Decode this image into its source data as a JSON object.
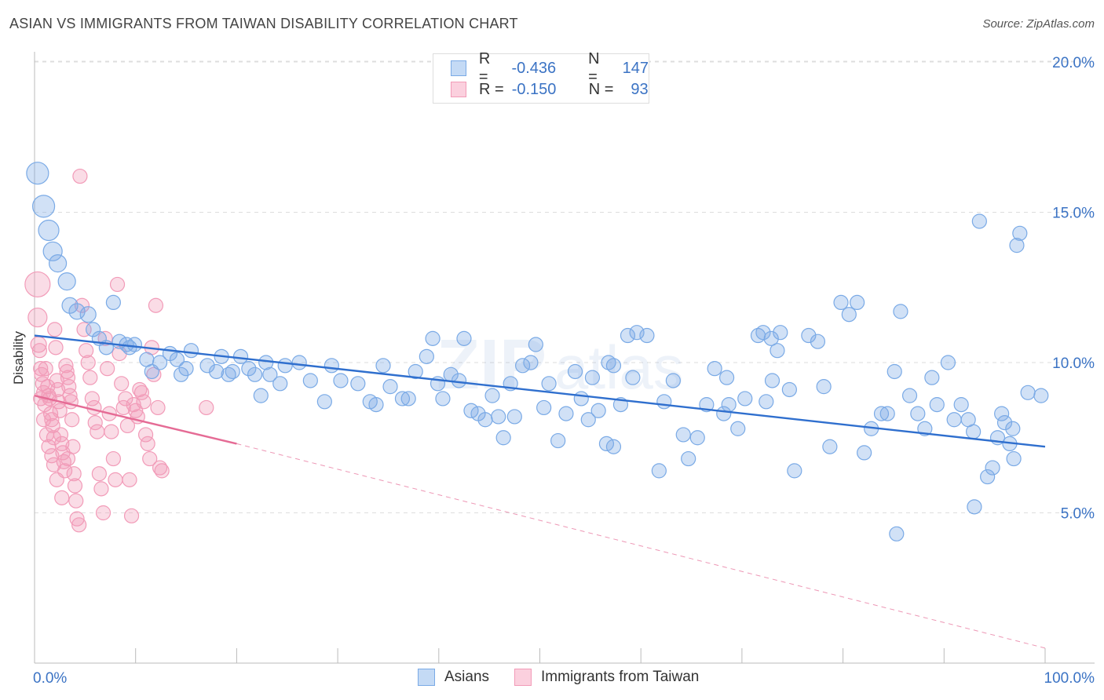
{
  "header": {
    "title": "ASIAN VS IMMIGRANTS FROM TAIWAN DISABILITY CORRELATION CHART",
    "source": "Source: ZipAtlas.com"
  },
  "legend": {
    "asians": {
      "r_label": "R =",
      "r_value": "-0.436",
      "n_label": "N =",
      "n_value": "147"
    },
    "taiwan": {
      "r_label": "R =",
      "r_value": "-0.150",
      "n_label": "N =",
      "n_value": "93"
    }
  },
  "watermark": {
    "zip": "ZIP",
    "atlas": "atlas"
  },
  "chart_data": {
    "type": "scatter",
    "title": "ASIAN VS IMMIGRANTS FROM TAIWAN DISABILITY CORRELATION CHART",
    "xlabel": "",
    "ylabel": "Disability",
    "xlim": [
      0,
      100
    ],
    "ylim": [
      0,
      21
    ],
    "x_tick_labels": [
      "0.0%",
      "100.0%"
    ],
    "y_ticks": [
      5,
      10,
      15,
      20
    ],
    "y_tick_labels": [
      "5.0%",
      "10.0%",
      "15.0%",
      "20.0%"
    ],
    "grid": "horizontal dashed",
    "legend_position": "bottom-center",
    "colors": {
      "asians": "#7aaae6",
      "asians_line": "#2f6fce",
      "taiwan": "#f29bb8",
      "taiwan_line": "#e56b95",
      "tick_text": "#3b73c4"
    },
    "series": [
      {
        "name": "Asians",
        "trend": {
          "x": [
            0,
            100
          ],
          "y": [
            10.9,
            7.2
          ]
        },
        "points": [
          [
            0.3,
            16.3,
            14
          ],
          [
            0.9,
            15.2,
            14
          ],
          [
            1.4,
            14.4,
            13
          ],
          [
            1.8,
            13.7,
            12
          ],
          [
            2.3,
            13.3,
            11
          ],
          [
            3.2,
            12.7,
            11
          ],
          [
            3.5,
            11.9,
            10
          ],
          [
            4.2,
            11.7,
            10
          ],
          [
            5.3,
            11.6,
            10
          ],
          [
            7.8,
            12.0,
            9
          ],
          [
            5.8,
            11.1,
            9
          ],
          [
            6.4,
            10.8,
            9
          ],
          [
            7.1,
            10.5,
            9
          ],
          [
            9.1,
            10.6,
            9
          ],
          [
            9.9,
            10.6,
            9
          ],
          [
            8.4,
            10.7,
            9
          ],
          [
            9.4,
            10.5,
            9
          ],
          [
            11.6,
            9.7,
            9
          ],
          [
            11.1,
            10.1,
            9
          ],
          [
            12.4,
            10.0,
            9
          ],
          [
            13.4,
            10.3,
            9
          ],
          [
            14.1,
            10.1,
            9
          ],
          [
            14.5,
            9.6,
            9
          ],
          [
            15.0,
            9.8,
            9
          ],
          [
            15.5,
            10.4,
            9
          ],
          [
            17.1,
            9.9,
            9
          ],
          [
            18.0,
            9.7,
            9
          ],
          [
            18.5,
            10.2,
            9
          ],
          [
            19.2,
            9.6,
            9
          ],
          [
            19.6,
            9.7,
            9
          ],
          [
            20.4,
            10.2,
            9
          ],
          [
            21.2,
            9.8,
            9
          ],
          [
            21.8,
            9.6,
            9
          ],
          [
            22.4,
            8.9,
            9
          ],
          [
            23.3,
            9.6,
            9
          ],
          [
            24.3,
            9.3,
            9
          ],
          [
            24.8,
            9.9,
            9
          ],
          [
            22.9,
            10.0,
            9
          ],
          [
            26.2,
            10.0,
            9
          ],
          [
            27.3,
            9.4,
            9
          ],
          [
            28.7,
            8.7,
            9
          ],
          [
            29.4,
            9.9,
            9
          ],
          [
            30.3,
            9.4,
            9
          ],
          [
            32.0,
            9.3,
            9
          ],
          [
            33.2,
            8.7,
            9
          ],
          [
            33.8,
            8.6,
            9
          ],
          [
            34.5,
            9.9,
            9
          ],
          [
            35.2,
            9.2,
            9
          ],
          [
            36.4,
            8.8,
            9
          ],
          [
            37.0,
            8.8,
            9
          ],
          [
            37.7,
            9.7,
            9
          ],
          [
            38.8,
            10.2,
            9
          ],
          [
            39.9,
            9.3,
            9
          ],
          [
            40.4,
            8.8,
            9
          ],
          [
            41.2,
            9.6,
            9
          ],
          [
            42.5,
            10.8,
            9
          ],
          [
            43.2,
            8.4,
            9
          ],
          [
            43.9,
            8.3,
            9
          ],
          [
            45.3,
            8.9,
            9
          ],
          [
            45.9,
            8.2,
            9
          ],
          [
            46.4,
            7.5,
            9
          ],
          [
            47.5,
            8.2,
            9
          ],
          [
            48.3,
            9.9,
            9
          ],
          [
            49.1,
            10.0,
            9
          ],
          [
            49.6,
            10.6,
            9
          ],
          [
            50.4,
            8.5,
            9
          ],
          [
            50.9,
            9.3,
            9
          ],
          [
            51.8,
            7.4,
            9
          ],
          [
            52.6,
            8.3,
            9
          ],
          [
            53.5,
            9.7,
            9
          ],
          [
            54.1,
            8.8,
            9
          ],
          [
            54.8,
            8.1,
            9
          ],
          [
            55.8,
            8.4,
            9
          ],
          [
            56.6,
            7.3,
            9
          ],
          [
            57.3,
            7.2,
            9
          ],
          [
            58.0,
            8.6,
            9
          ],
          [
            59.2,
            9.5,
            9
          ],
          [
            60.6,
            10.9,
            9
          ],
          [
            61.8,
            6.4,
            9
          ],
          [
            62.3,
            8.7,
            9
          ],
          [
            63.2,
            9.4,
            9
          ],
          [
            64.2,
            7.6,
            9
          ],
          [
            64.7,
            6.8,
            9
          ],
          [
            65.6,
            7.5,
            9
          ],
          [
            66.5,
            8.6,
            9
          ],
          [
            67.3,
            9.8,
            9
          ],
          [
            68.2,
            8.3,
            9
          ],
          [
            68.7,
            8.6,
            9
          ],
          [
            69.6,
            7.8,
            9
          ],
          [
            70.3,
            8.8,
            9
          ],
          [
            71.6,
            10.9,
            9
          ],
          [
            72.4,
            8.7,
            9
          ],
          [
            73.0,
            9.4,
            9
          ],
          [
            73.5,
            10.4,
            9
          ],
          [
            74.7,
            9.1,
            9
          ],
          [
            75.2,
            6.4,
            9
          ],
          [
            76.6,
            10.9,
            9
          ],
          [
            77.5,
            10.7,
            9
          ],
          [
            78.1,
            9.2,
            9
          ],
          [
            78.7,
            7.2,
            9
          ],
          [
            79.8,
            12.0,
            9
          ],
          [
            80.6,
            11.6,
            9
          ],
          [
            81.4,
            12.0,
            9
          ],
          [
            82.1,
            7.0,
            9
          ],
          [
            82.8,
            7.8,
            9
          ],
          [
            83.8,
            8.3,
            9
          ],
          [
            84.4,
            8.3,
            9
          ],
          [
            85.1,
            9.7,
            9
          ],
          [
            85.7,
            11.7,
            9
          ],
          [
            86.6,
            8.9,
            9
          ],
          [
            87.4,
            8.3,
            9
          ],
          [
            88.1,
            7.8,
            9
          ],
          [
            88.8,
            9.5,
            9
          ],
          [
            89.3,
            8.6,
            9
          ],
          [
            90.4,
            10.0,
            9
          ],
          [
            91.0,
            8.1,
            9
          ],
          [
            91.7,
            8.6,
            9
          ],
          [
            92.4,
            8.1,
            9
          ],
          [
            92.9,
            7.7,
            9
          ],
          [
            93.5,
            14.7,
            9
          ],
          [
            94.8,
            6.5,
            9
          ],
          [
            95.3,
            7.5,
            9
          ],
          [
            96.0,
            8.0,
            9
          ],
          [
            96.5,
            7.3,
            9
          ],
          [
            96.9,
            6.8,
            9
          ],
          [
            98.3,
            9.0,
            9
          ],
          [
            99.6,
            8.9,
            9
          ],
          [
            93.0,
            5.2,
            9
          ],
          [
            94.3,
            6.2,
            9
          ],
          [
            95.7,
            8.3,
            9
          ],
          [
            96.8,
            7.8,
            9
          ],
          [
            97.5,
            14.3,
            9
          ],
          [
            97.2,
            13.9,
            9
          ],
          [
            85.3,
            4.3,
            9
          ],
          [
            72.1,
            11.0,
            9
          ],
          [
            72.9,
            10.8,
            9
          ],
          [
            73.8,
            11.0,
            9
          ],
          [
            68.5,
            9.5,
            9
          ],
          [
            59.6,
            11.0,
            9
          ],
          [
            58.7,
            10.9,
            9
          ],
          [
            57.3,
            9.9,
            9
          ],
          [
            56.8,
            10.0,
            9
          ],
          [
            55.2,
            9.5,
            9
          ],
          [
            42.0,
            9.4,
            9
          ],
          [
            44.6,
            8.1,
            9
          ],
          [
            47.1,
            9.3,
            9
          ],
          [
            39.4,
            10.8,
            9
          ]
        ]
      },
      {
        "name": "Immigrants from Taiwan",
        "trend": {
          "x": [
            0,
            20
          ],
          "y": [
            8.9,
            7.3
          ],
          "dashed_to": {
            "x": 100,
            "y": 0.5
          }
        },
        "points": [
          [
            0.3,
            12.6,
            16
          ],
          [
            0.3,
            11.5,
            12
          ],
          [
            0.4,
            10.6,
            10
          ],
          [
            0.5,
            10.4,
            9
          ],
          [
            0.6,
            9.8,
            9
          ],
          [
            0.7,
            9.6,
            9
          ],
          [
            0.8,
            9.3,
            9
          ],
          [
            0.9,
            9.0,
            9
          ],
          [
            1.0,
            8.6,
            9
          ],
          [
            1.1,
            9.8,
            9
          ],
          [
            1.3,
            9.2,
            9
          ],
          [
            1.4,
            8.9,
            9
          ],
          [
            1.5,
            8.8,
            9
          ],
          [
            1.6,
            8.3,
            9
          ],
          [
            1.7,
            8.1,
            9
          ],
          [
            1.8,
            7.9,
            9
          ],
          [
            1.9,
            7.5,
            9
          ],
          [
            2.0,
            11.1,
            9
          ],
          [
            2.1,
            10.5,
            9
          ],
          [
            2.2,
            9.4,
            9
          ],
          [
            2.3,
            9.1,
            9
          ],
          [
            2.4,
            8.7,
            9
          ],
          [
            2.5,
            8.4,
            9
          ],
          [
            2.6,
            7.6,
            9
          ],
          [
            2.7,
            7.3,
            9
          ],
          [
            2.8,
            7.0,
            9
          ],
          [
            2.9,
            6.7,
            9
          ],
          [
            3.0,
            6.4,
            9
          ],
          [
            3.1,
            9.9,
            9
          ],
          [
            3.2,
            9.7,
            9
          ],
          [
            3.3,
            9.5,
            9
          ],
          [
            3.4,
            9.2,
            9
          ],
          [
            3.5,
            8.9,
            9
          ],
          [
            3.6,
            8.7,
            9
          ],
          [
            3.7,
            8.1,
            9
          ],
          [
            3.8,
            7.2,
            9
          ],
          [
            3.9,
            6.3,
            9
          ],
          [
            4.0,
            5.9,
            9
          ],
          [
            4.1,
            5.4,
            9
          ],
          [
            4.2,
            4.8,
            9
          ],
          [
            4.4,
            4.6,
            9
          ],
          [
            4.5,
            16.2,
            9
          ],
          [
            4.7,
            11.9,
            9
          ],
          [
            4.9,
            11.1,
            9
          ],
          [
            5.1,
            10.4,
            9
          ],
          [
            5.3,
            10.0,
            9
          ],
          [
            5.5,
            9.5,
            9
          ],
          [
            5.7,
            8.8,
            9
          ],
          [
            5.9,
            8.5,
            9
          ],
          [
            6.0,
            8.0,
            9
          ],
          [
            6.2,
            7.7,
            9
          ],
          [
            6.4,
            6.3,
            9
          ],
          [
            6.6,
            5.8,
            9
          ],
          [
            6.8,
            5.0,
            9
          ],
          [
            7.0,
            10.8,
            9
          ],
          [
            7.2,
            9.8,
            9
          ],
          [
            7.4,
            8.3,
            9
          ],
          [
            7.6,
            7.7,
            9
          ],
          [
            7.8,
            6.8,
            9
          ],
          [
            8.0,
            6.1,
            9
          ],
          [
            8.2,
            12.6,
            9
          ],
          [
            8.4,
            10.3,
            9
          ],
          [
            8.6,
            9.3,
            9
          ],
          [
            8.8,
            8.5,
            9
          ],
          [
            9.0,
            8.8,
            9
          ],
          [
            9.2,
            7.9,
            9
          ],
          [
            9.4,
            6.1,
            9
          ],
          [
            9.6,
            4.9,
            9
          ],
          [
            9.8,
            8.6,
            9
          ],
          [
            10.0,
            8.4,
            9
          ],
          [
            10.2,
            8.2,
            9
          ],
          [
            10.4,
            9.1,
            9
          ],
          [
            10.6,
            9.0,
            9
          ],
          [
            10.8,
            8.7,
            9
          ],
          [
            11.0,
            7.6,
            9
          ],
          [
            11.2,
            7.3,
            9
          ],
          [
            11.4,
            6.8,
            9
          ],
          [
            11.6,
            10.5,
            9
          ],
          [
            11.8,
            9.6,
            9
          ],
          [
            12.0,
            11.9,
            9
          ],
          [
            12.2,
            8.5,
            9
          ],
          [
            12.4,
            6.5,
            9
          ],
          [
            12.6,
            6.4,
            9
          ],
          [
            0.6,
            8.8,
            9
          ],
          [
            0.9,
            8.1,
            9
          ],
          [
            1.2,
            7.6,
            9
          ],
          [
            1.4,
            7.2,
            9
          ],
          [
            1.7,
            6.9,
            9
          ],
          [
            1.9,
            6.6,
            9
          ],
          [
            2.2,
            6.1,
            9
          ],
          [
            17.0,
            8.5,
            9
          ],
          [
            2.7,
            5.5,
            9
          ],
          [
            3.3,
            6.8,
            9
          ]
        ]
      }
    ]
  }
}
